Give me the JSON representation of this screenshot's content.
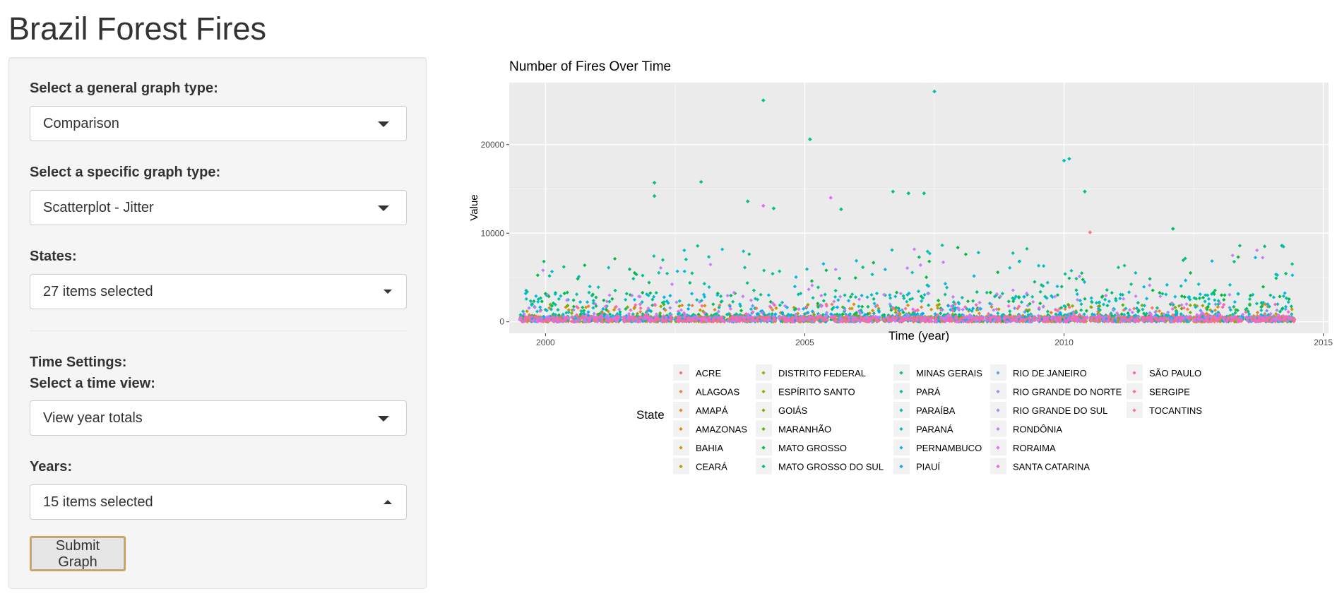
{
  "app": {
    "title": "Brazil Forest Fires"
  },
  "sidebar": {
    "general_type_label": "Select a general graph type:",
    "general_type_value": "Comparison",
    "specific_type_label": "Select a specific graph type:",
    "specific_type_value": "Scatterplot - Jitter",
    "states_label": "States:",
    "states_value": "27 items selected",
    "time_settings_label": "Time Settings:",
    "time_view_label": "Select a time view:",
    "time_view_value": "View year totals",
    "years_label": "Years:",
    "years_value": "15 items selected",
    "submit_label": "Submit Graph"
  },
  "chart_data": {
    "type": "scatter",
    "title": "Number of Fires Over Time",
    "xlabel": "Time (year)",
    "ylabel": "Value",
    "xlim": [
      1999.3,
      2015.1
    ],
    "ylim": [
      -1300,
      27000
    ],
    "xticks": [
      2000,
      2005,
      2010,
      2015
    ],
    "yticks": [
      0,
      10000,
      20000
    ],
    "grid": true,
    "legend_title": "State",
    "legend_position": "bottom",
    "highlights": [
      {
        "x": 2004.2,
        "y": 25000,
        "color": "#00C08B"
      },
      {
        "x": 2007.5,
        "y": 26000,
        "color": "#00C1A3"
      },
      {
        "x": 2005.1,
        "y": 20600,
        "color": "#00C08B"
      },
      {
        "x": 2010.1,
        "y": 18400,
        "color": "#00BFC4"
      },
      {
        "x": 2010.0,
        "y": 18200,
        "color": "#00BFC4"
      },
      {
        "x": 2002.1,
        "y": 15700,
        "color": "#00C08B"
      },
      {
        "x": 2003.0,
        "y": 15800,
        "color": "#00C08B"
      },
      {
        "x": 2002.1,
        "y": 14200,
        "color": "#00C08B"
      },
      {
        "x": 2006.7,
        "y": 14700,
        "color": "#00C08B"
      },
      {
        "x": 2007.0,
        "y": 14500,
        "color": "#00C08B"
      },
      {
        "x": 2007.3,
        "y": 14500,
        "color": "#00C08B"
      },
      {
        "x": 2010.4,
        "y": 14700,
        "color": "#00C08B"
      },
      {
        "x": 2005.5,
        "y": 14000,
        "color": "#E76BF3"
      },
      {
        "x": 2003.9,
        "y": 13600,
        "color": "#00C08B"
      },
      {
        "x": 2004.4,
        "y": 12800,
        "color": "#00C08B"
      },
      {
        "x": 2004.2,
        "y": 13100,
        "color": "#E76BF3"
      },
      {
        "x": 2005.7,
        "y": 12700,
        "color": "#00C08B"
      },
      {
        "x": 2012.1,
        "y": 10500,
        "color": "#00BE67"
      },
      {
        "x": 2010.5,
        "y": 10100,
        "color": "#F8766D"
      },
      {
        "x": 2014.2,
        "y": 8600,
        "color": "#00C08B"
      }
    ],
    "series": [
      {
        "name": "ACRE",
        "color": "#F8766D"
      },
      {
        "name": "ALAGOAS",
        "color": "#F07E4E"
      },
      {
        "name": "AMAPÁ",
        "color": "#E7861B"
      },
      {
        "name": "AMAZONAS",
        "color": "#DB8E00"
      },
      {
        "name": "BAHIA",
        "color": "#CE9500"
      },
      {
        "name": "CEARÁ",
        "color": "#BE9C00"
      },
      {
        "name": "DISTRITO FEDERAL",
        "color": "#ACA300"
      },
      {
        "name": "ESPÍRITO SANTO",
        "color": "#97A900"
      },
      {
        "name": "GOIÁS",
        "color": "#7CAE00"
      },
      {
        "name": "MARANHÃO",
        "color": "#53B400"
      },
      {
        "name": "MATO GROSSO",
        "color": "#00BA38"
      },
      {
        "name": "MATO GROSSO DO SUL",
        "color": "#00BE67"
      },
      {
        "name": "MINAS GERAIS",
        "color": "#00C08B"
      },
      {
        "name": "PARÁ",
        "color": "#00C1A3"
      },
      {
        "name": "PARAÍBA",
        "color": "#00BFB4"
      },
      {
        "name": "PARANÁ",
        "color": "#00BFC4"
      },
      {
        "name": "PERNAMBUCO",
        "color": "#00B8E7"
      },
      {
        "name": "PIAUÍ",
        "color": "#00A9FF"
      },
      {
        "name": "RIO DE JANEIRO",
        "color": "#619CFF"
      },
      {
        "name": "RIO GRANDE DO NORTE",
        "color": "#8B93FF"
      },
      {
        "name": "RIO GRANDE DO SUL",
        "color": "#A58AFF"
      },
      {
        "name": "RONDÔNIA",
        "color": "#C77CFF"
      },
      {
        "name": "RORAIMA",
        "color": "#E76BF3"
      },
      {
        "name": "SANTA CATARINA",
        "color": "#F564E3"
      },
      {
        "name": "SÃO PAULO",
        "color": "#FF61C3"
      },
      {
        "name": "SERGIPE",
        "color": "#FF64B0"
      },
      {
        "name": "TOCANTINS",
        "color": "#FF6C91"
      }
    ]
  }
}
